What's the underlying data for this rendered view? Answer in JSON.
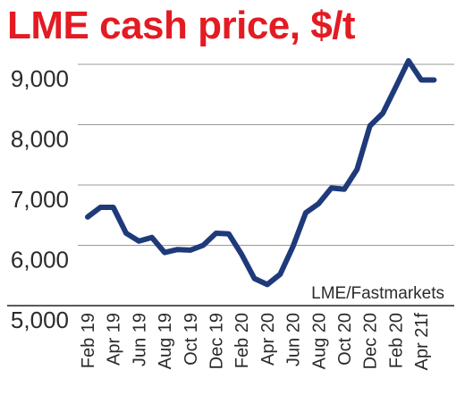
{
  "chart_data": {
    "type": "line",
    "title": "LME cash price, $/t",
    "source": "LME/Fastmarkets",
    "ylim": [
      5000,
      9500
    ],
    "yticks": [
      9000,
      8000,
      7000,
      6000,
      5000
    ],
    "ytick_labels": [
      "9,000",
      "8,000",
      "7,000",
      "6,000",
      "5,000"
    ],
    "x_tick_labels": [
      "Feb 19",
      "Apr 19",
      "Jun 19",
      "Aug 19",
      "Oct 19",
      "Dec 19",
      "Feb 20",
      "Apr 20",
      "Jun 20",
      "Aug 20",
      "Oct 20",
      "Dec 20",
      "Feb 20",
      "Apr 21f"
    ],
    "x_tick_positions": [
      0,
      2,
      4,
      6,
      8,
      10,
      12,
      14,
      16,
      18,
      20,
      22,
      24,
      26
    ],
    "grid": "horizontal",
    "colors": {
      "line": "#1f3a7a",
      "title": "#e31b23",
      "grid": "#9a9a9a"
    },
    "series": [
      {
        "x": [
          0,
          1,
          2,
          3,
          4,
          5,
          6,
          7,
          8,
          9,
          10,
          11,
          12,
          13,
          14,
          15,
          16,
          17,
          18,
          19,
          20,
          21,
          22,
          23,
          24,
          25,
          26,
          27
        ],
        "values": [
          6470,
          6630,
          6630,
          6200,
          6070,
          6130,
          5880,
          5930,
          5920,
          6000,
          6200,
          6190,
          5850,
          5450,
          5350,
          5520,
          5980,
          6540,
          6690,
          6950,
          6930,
          7260,
          7980,
          8190,
          8620,
          9060,
          8740,
          8740
        ]
      }
    ]
  }
}
